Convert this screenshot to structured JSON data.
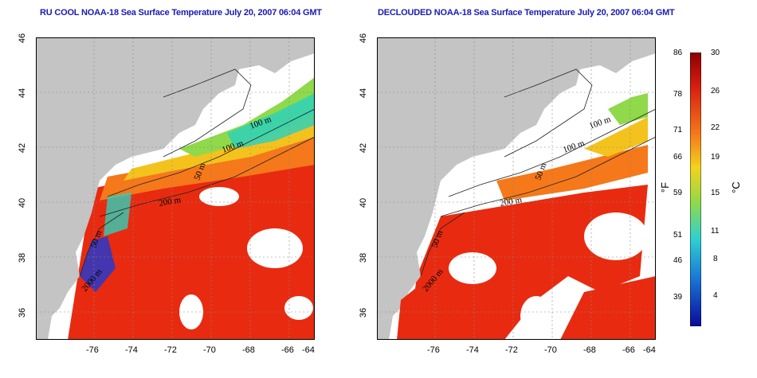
{
  "panels": [
    {
      "title": "RU COOL NOAA-18 Sea Surface Temperature July 20, 2007 06:04 GMT",
      "contour_labels": [
        "100 m",
        "100 m",
        "50 m",
        "200 m",
        "50 m",
        "2000 m"
      ]
    },
    {
      "title": "DECLOUDED NOAA-18 Sea Surface Temperature July 20, 2007 06:04 GMT",
      "contour_labels": [
        "100 m",
        "100 m",
        "50 m",
        "200 m",
        "50 m",
        "2000 m"
      ]
    }
  ],
  "axes": {
    "longitude_ticks": [
      "-76",
      "-74",
      "-72",
      "-70",
      "-68",
      "-66",
      "-64"
    ],
    "latitude_ticks": [
      "46",
      "44",
      "42",
      "40",
      "38",
      "36"
    ]
  },
  "colorbar": {
    "fahrenheit_unit": "°F",
    "celsius_unit": "°C",
    "fahrenheit_ticks": [
      "86",
      "78",
      "71",
      "66",
      "59",
      "51",
      "46",
      "39"
    ],
    "celsius_ticks": [
      "30",
      "26",
      "22",
      "19",
      "15",
      "11",
      "8",
      "4"
    ]
  },
  "colors": {
    "land": "#c4c4c4",
    "cloud": "#ffffff",
    "hot": "#e82b10",
    "warm": "#f5781a",
    "mild": "#f4c21d",
    "cool": "#8fd94a",
    "cold": "#2fd1b8",
    "coldest": "#1a3ad6"
  }
}
